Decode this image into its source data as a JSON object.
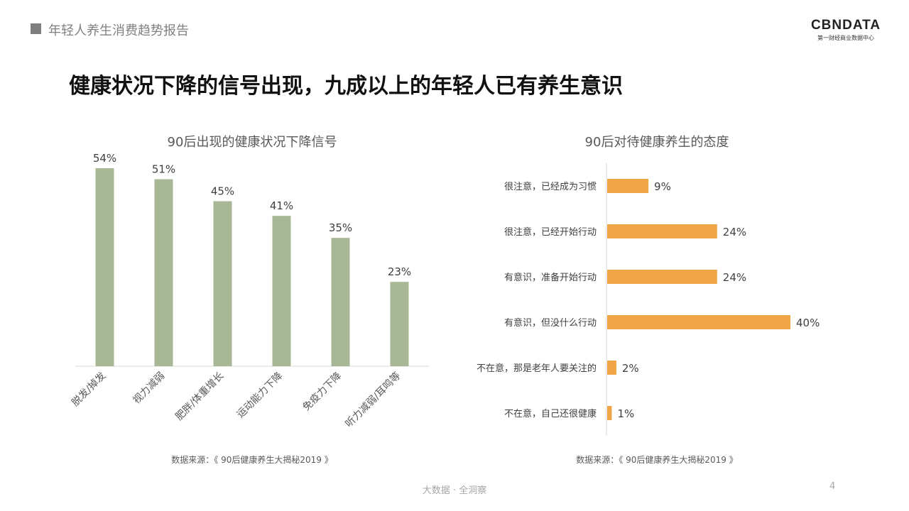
{
  "header": {
    "title": "年轻人养生消费趋势报告"
  },
  "logo": {
    "main": "CBNDATA",
    "sub": "第一财经商业数据中心"
  },
  "slide": {
    "title": "健康状况下降的信号出现，九成以上的年轻人已有养生意识"
  },
  "chart_data": [
    {
      "type": "bar",
      "orientation": "vertical",
      "title": "90后出现的健康状况下降信号",
      "categories": [
        "脱发/掉发",
        "视力减弱",
        "肥胖/体重增长",
        "运动能力下降",
        "免疫力下降",
        "听力减弱/耳鸣等"
      ],
      "values": [
        54,
        51,
        45,
        41,
        35,
        23
      ],
      "data_labels": [
        "54%",
        "51%",
        "45%",
        "41%",
        "35%",
        "23%"
      ],
      "ylim": [
        0,
        60
      ],
      "grid": false,
      "color": "#a8b896",
      "source": "数据来源：《 90后健康养生大揭秘2019 》"
    },
    {
      "type": "bar",
      "orientation": "horizontal",
      "title": "90后对待健康养生的态度",
      "categories": [
        "很注意，已经成为习惯",
        "很注意，已经开始行动",
        "有意识，准备开始行动",
        "有意识，但没什么行动",
        "不在意，那是老年人要关注的",
        "不在意，自己还很健康"
      ],
      "values": [
        9,
        24,
        24,
        40,
        2,
        1
      ],
      "data_labels": [
        "9%",
        "24%",
        "24%",
        "40%",
        "2%",
        "1%"
      ],
      "xlim": [
        0,
        40
      ],
      "grid": false,
      "color": "#f0a546",
      "source": "数据来源：《 90后健康养生大揭秘2019 》"
    }
  ],
  "footer": {
    "text": "大数据 · 全洞察",
    "page": "4"
  }
}
